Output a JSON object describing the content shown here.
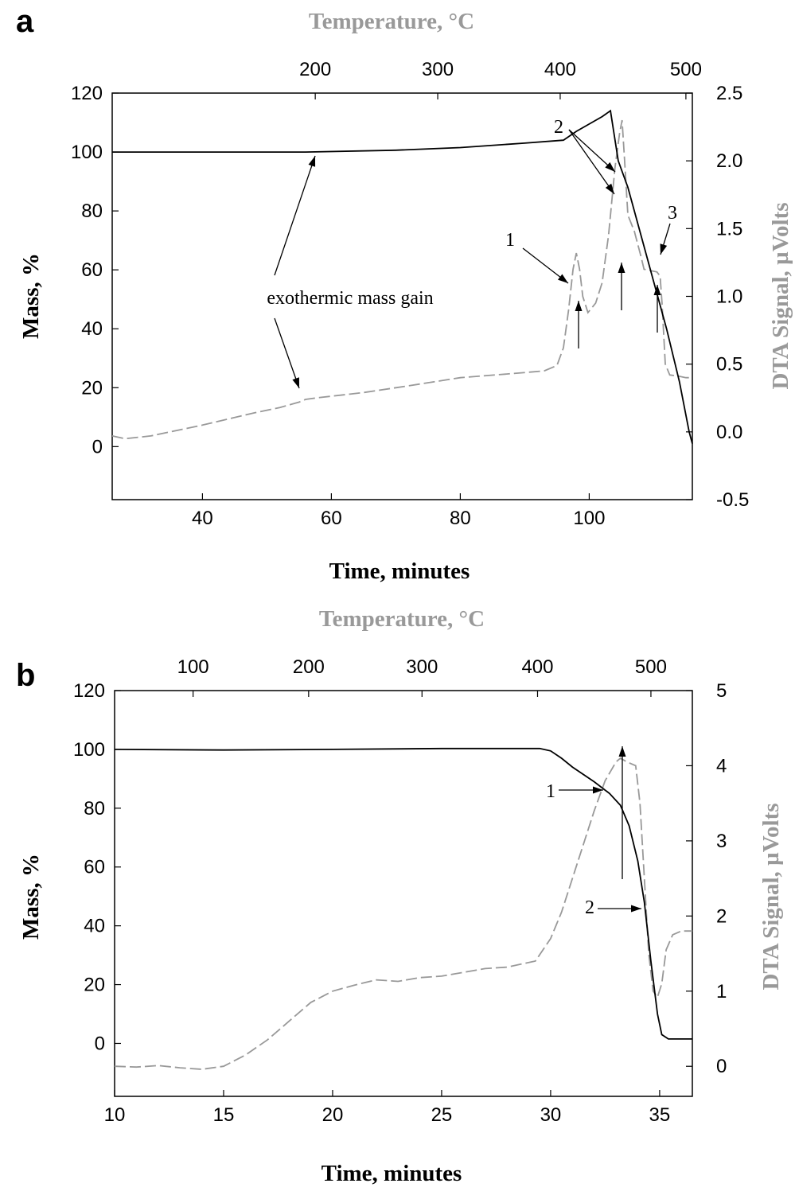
{
  "chart_data": [
    {
      "panel": "a",
      "type": "line",
      "xlabel": "Time, minutes",
      "ylabel": "Mass, %",
      "y2label": "DTA Signal, µVolts",
      "x2label": "Temperature, °C",
      "xlim": [
        26,
        116
      ],
      "ylim": [
        -18,
        120
      ],
      "y2lim": [
        -0.5,
        2.5
      ],
      "xticks": [
        40,
        60,
        80,
        100
      ],
      "yticks": [
        0,
        20,
        40,
        60,
        80,
        100,
        120
      ],
      "y2ticks": [
        "-0.5",
        "0.0",
        "0.5",
        "1.0",
        "1.5",
        "2.0",
        "2.5"
      ],
      "x2ticks": [
        {
          "label": "200",
          "x": 57.5
        },
        {
          "label": "300",
          "x": 76.5
        },
        {
          "label": "400",
          "x": 95.5
        },
        {
          "label": "500",
          "x": 115
        }
      ],
      "grid": false,
      "series": [
        {
          "name": "Mass",
          "axis": "left",
          "color": "#000000",
          "style": "solid",
          "points": [
            [
              26,
              100
            ],
            [
              40,
              100
            ],
            [
              56,
              100
            ],
            [
              70,
              100.6
            ],
            [
              80,
              101.5
            ],
            [
              90,
              103
            ],
            [
              96,
              104
            ],
            [
              98,
              107
            ],
            [
              100,
              109.5
            ],
            [
              102,
              112
            ],
            [
              103.3,
              114
            ],
            [
              104.5,
              97
            ],
            [
              106,
              88
            ],
            [
              108,
              72
            ],
            [
              110,
              56
            ],
            [
              112,
              40
            ],
            [
              114,
              22
            ],
            [
              115.5,
              5
            ],
            [
              116,
              1
            ]
          ]
        },
        {
          "name": "DTA",
          "axis": "right",
          "color": "#999999",
          "style": "dashed",
          "points": [
            [
              26,
              -0.03
            ],
            [
              28,
              -0.05
            ],
            [
              32,
              -0.03
            ],
            [
              40,
              0.05
            ],
            [
              48,
              0.14
            ],
            [
              52,
              0.18
            ],
            [
              55,
              0.22
            ],
            [
              56,
              0.24
            ],
            [
              57.5,
              0.25
            ],
            [
              65,
              0.29
            ],
            [
              72,
              0.34
            ],
            [
              80,
              0.4
            ],
            [
              88,
              0.43
            ],
            [
              93,
              0.45
            ],
            [
              95,
              0.49
            ],
            [
              96,
              0.62
            ],
            [
              96.8,
              0.9
            ],
            [
              97.5,
              1.2
            ],
            [
              98,
              1.32
            ],
            [
              98.5,
              1.2
            ],
            [
              99,
              1.0
            ],
            [
              99.8,
              0.88
            ],
            [
              101,
              0.95
            ],
            [
              102,
              1.1
            ],
            [
              103,
              1.45
            ],
            [
              104,
              1.95
            ],
            [
              104.7,
              2.2
            ],
            [
              105.1,
              2.3
            ],
            [
              105.5,
              2.0
            ],
            [
              106,
              1.6
            ],
            [
              107,
              1.48
            ],
            [
              108,
              1.3
            ],
            [
              108.5,
              1.2
            ],
            [
              110.5,
              1.18
            ],
            [
              111,
              1.15
            ],
            [
              111.3,
              0.95
            ],
            [
              111.8,
              0.5
            ],
            [
              112.5,
              0.42
            ],
            [
              114,
              0.41
            ],
            [
              115,
              0.4
            ],
            [
              116,
              0.4
            ]
          ]
        }
      ],
      "annotations": [
        {
          "text": "exothermic mass gain",
          "x": 41.5,
          "y": 50
        },
        {
          "text": "1",
          "x": 95.5,
          "y": 67
        },
        {
          "text": "2",
          "x": 100.7,
          "y": 108
        },
        {
          "text": "3",
          "x": 112.7,
          "y": 78
        }
      ]
    },
    {
      "panel": "b",
      "type": "line",
      "xlabel": "Time, minutes",
      "ylabel": "Mass, %",
      "y2label": "DTA Signal, µVolts",
      "x2label": "Temperature, °C",
      "xlim": [
        10,
        36.5
      ],
      "ylim": [
        -18,
        120
      ],
      "y2lim": [
        -0.4,
        5
      ],
      "xticks": [
        10,
        15,
        20,
        25,
        30,
        35
      ],
      "yticks": [
        0,
        20,
        40,
        60,
        80,
        100,
        120
      ],
      "y2ticks": [
        "0",
        "1",
        "2",
        "3",
        "4",
        "5"
      ],
      "x2ticks": [
        {
          "label": "100",
          "x": 13.6
        },
        {
          "label": "200",
          "x": 18.9
        },
        {
          "label": "300",
          "x": 24.1
        },
        {
          "label": "400",
          "x": 29.4
        },
        {
          "label": "500",
          "x": 34.6
        }
      ],
      "grid": false,
      "series": [
        {
          "name": "Mass",
          "axis": "left",
          "color": "#000000",
          "style": "solid",
          "points": [
            [
              10,
              100
            ],
            [
              15,
              99.8
            ],
            [
              20,
              100
            ],
            [
              25,
              100.3
            ],
            [
              29.5,
              100.3
            ],
            [
              30,
              99.5
            ],
            [
              30.5,
              97
            ],
            [
              31,
              94
            ],
            [
              32,
              89
            ],
            [
              32.7,
              85
            ],
            [
              33.2,
              81
            ],
            [
              33.6,
              74
            ],
            [
              34,
              62
            ],
            [
              34.3,
              48
            ],
            [
              34.6,
              28
            ],
            [
              34.9,
              10
            ],
            [
              35.1,
              3
            ],
            [
              35.4,
              1.5
            ],
            [
              36,
              1.5
            ],
            [
              36.5,
              1.5
            ]
          ]
        },
        {
          "name": "DTA",
          "axis": "right",
          "color": "#999999",
          "style": "dashed",
          "points": [
            [
              10,
              0
            ],
            [
              11,
              -0.01
            ],
            [
              12,
              0.01
            ],
            [
              13,
              -0.02
            ],
            [
              14,
              -0.04
            ],
            [
              15,
              0
            ],
            [
              16,
              0.15
            ],
            [
              17,
              0.35
            ],
            [
              18,
              0.6
            ],
            [
              19,
              0.85
            ],
            [
              20,
              1.0
            ],
            [
              21,
              1.08
            ],
            [
              22,
              1.15
            ],
            [
              23,
              1.13
            ],
            [
              24,
              1.18
            ],
            [
              25,
              1.2
            ],
            [
              26,
              1.25
            ],
            [
              27,
              1.3
            ],
            [
              28,
              1.32
            ],
            [
              29.3,
              1.4
            ],
            [
              30,
              1.7
            ],
            [
              30.5,
              2.05
            ],
            [
              31,
              2.5
            ],
            [
              31.5,
              2.95
            ],
            [
              32,
              3.4
            ],
            [
              32.5,
              3.8
            ],
            [
              33,
              4.05
            ],
            [
              33.2,
              4.1
            ],
            [
              33.5,
              4.05
            ],
            [
              33.9,
              4.0
            ],
            [
              34.1,
              3.5
            ],
            [
              34.3,
              2.5
            ],
            [
              34.5,
              1.5
            ],
            [
              34.7,
              1.0
            ],
            [
              34.9,
              0.92
            ],
            [
              35.1,
              1.1
            ],
            [
              35.3,
              1.55
            ],
            [
              35.6,
              1.75
            ],
            [
              36,
              1.8
            ],
            [
              36.5,
              1.8
            ]
          ]
        }
      ],
      "annotations": [
        {
          "text": "1",
          "x": 31.8,
          "y": 82
        },
        {
          "text": "2",
          "x": 33.2,
          "y": 37
        }
      ]
    }
  ]
}
